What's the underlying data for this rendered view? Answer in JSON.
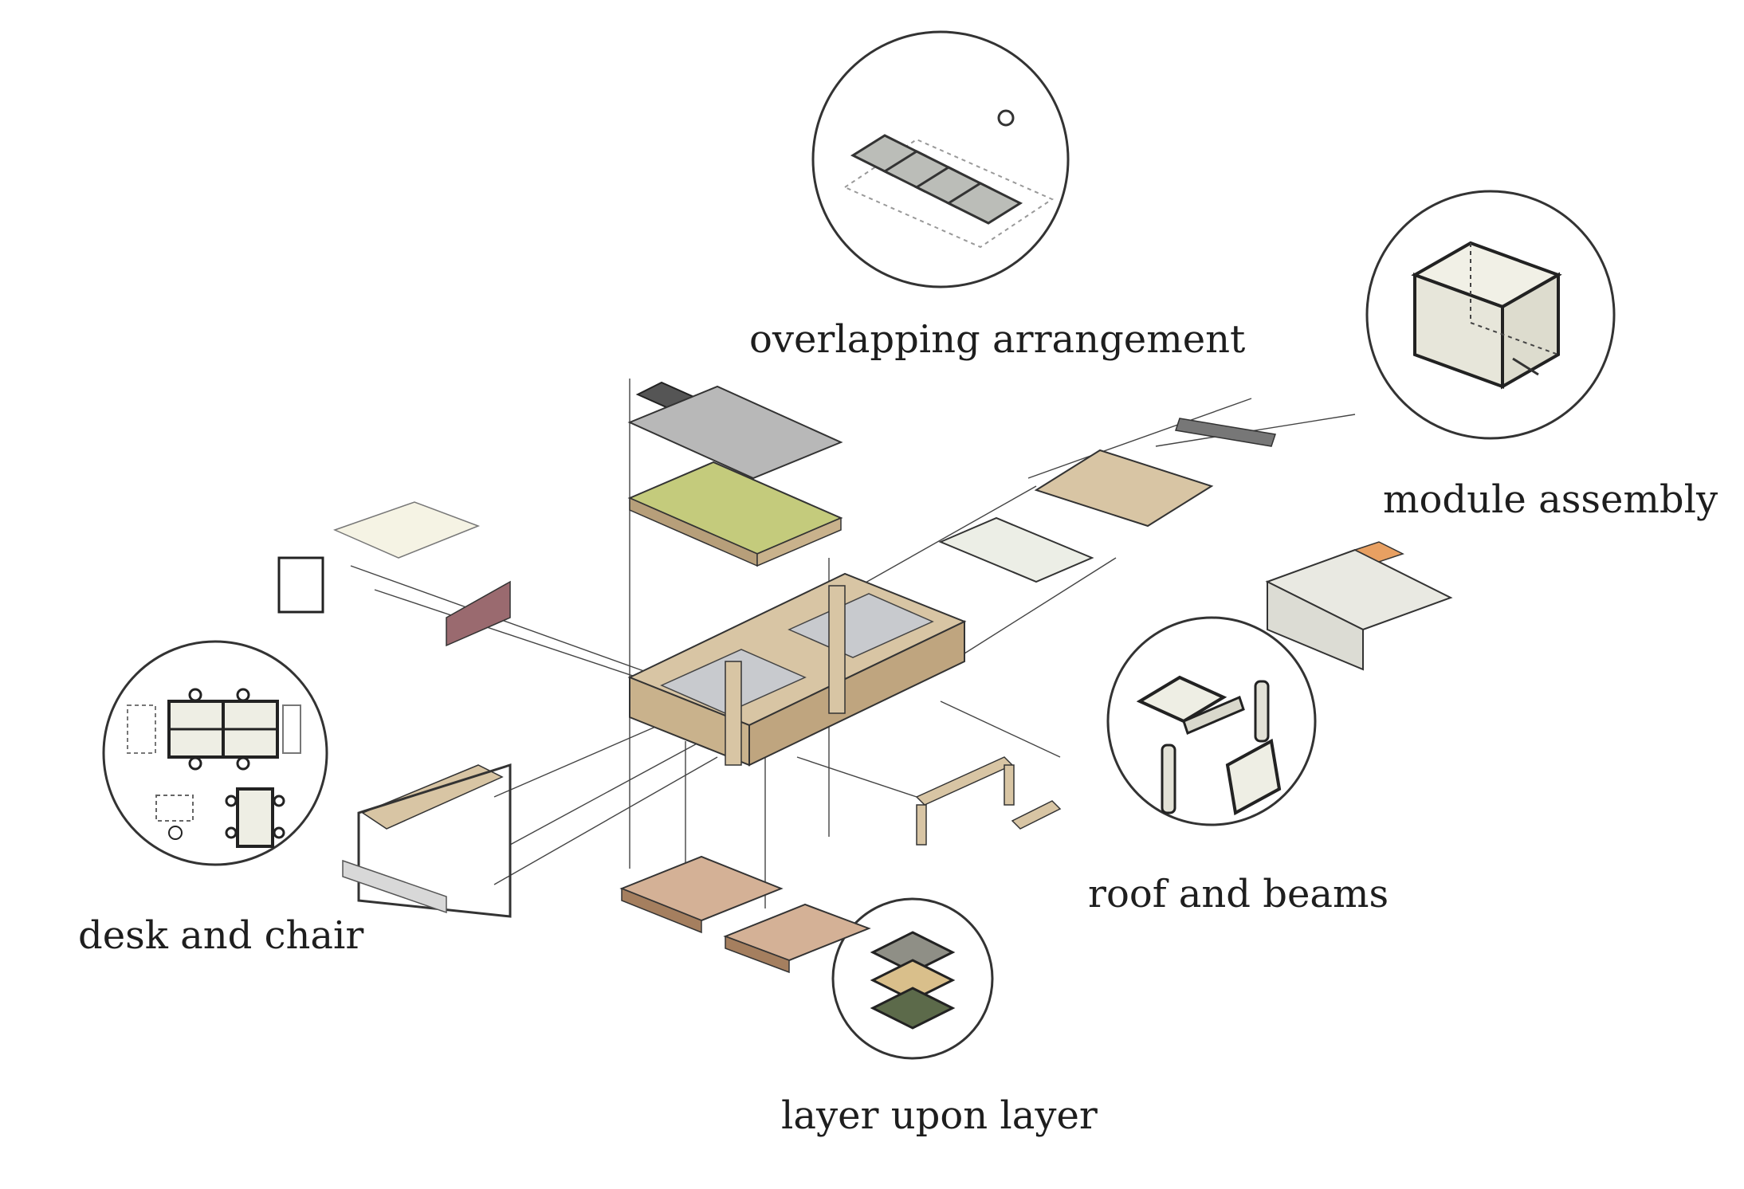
{
  "diagram": {
    "captions": {
      "overlapping": "overlapping arrangement",
      "module": "module assembly",
      "roof": "roof and beams",
      "desk": "desk and chair",
      "layer": "layer upon layer"
    },
    "colors": {
      "wood": "#d8c5a4",
      "wood_dark": "#b79f7a",
      "green_roof": "#c4cb7c",
      "floor": "#d4b196",
      "glass": "#c8cace",
      "panel": "#eceee6",
      "accent_wall": "#9a6a6f",
      "orange": "#e8a062",
      "line": "#333333"
    }
  }
}
